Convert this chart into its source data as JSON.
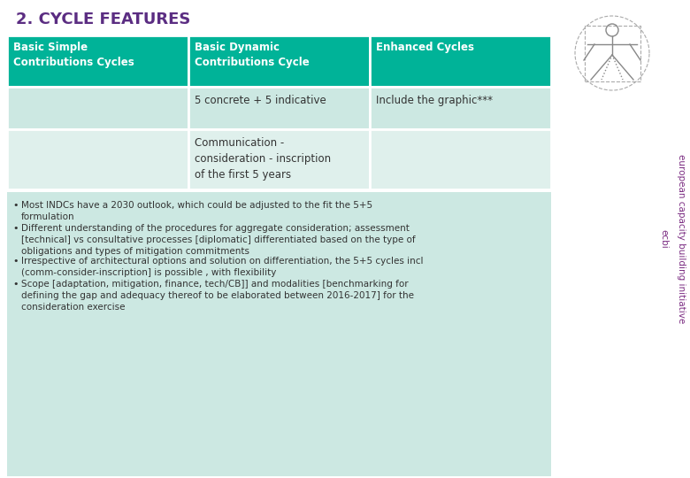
{
  "title": "2. CYCLE FEATURES",
  "title_color": "#5b2d82",
  "title_fontsize": 13,
  "bg_color": "#ffffff",
  "table_header_bg": "#00b398",
  "table_header_text_color": "#ffffff",
  "table_row1_bg": "#cce8e2",
  "table_row2_bg": "#dff0ec",
  "table_text_color": "#333333",
  "ecbi_text_color": "#7b2d82",
  "col1_header": "Basic Simple\nContributions Cycles",
  "col2_header": "Basic Dynamic\nContributions Cycle",
  "col3_header": "Enhanced Cycles",
  "row1_col1": "",
  "row1_col2": "5 concrete + 5 indicative",
  "row1_col3": "Include the graphic***",
  "row2_col1": "",
  "row2_col2": "Communication -\nconsideration - inscription\nof the first 5 years",
  "row2_col3": "",
  "bullets": [
    "Most INDCs have a 2030 outlook, which could be adjusted to the fit the 5+5\nformulation",
    "Different understanding of the procedures for aggregate consideration; assessment\n[technical] vs consultative processes [diplomatic] differentiated based on the type of\nobligations and types of mitigation commitments",
    "Irrespective of architectural options and solution on differentiation, the 5+5 cycles incl\n(comm-consider-inscription] is possible , with flexibility",
    "Scope [adaptation, mitigation, finance, tech/CB]] and modalities [benchmarking for\ndefining the gap and adequacy thereof to be elaborated between 2016-2017] for the\nconsideration exercise"
  ],
  "bullet_color": "#333333",
  "bullet_fontsize": 7.5,
  "ecbi_label1": "european capacity building initiative",
  "ecbi_label2": "ecbi"
}
